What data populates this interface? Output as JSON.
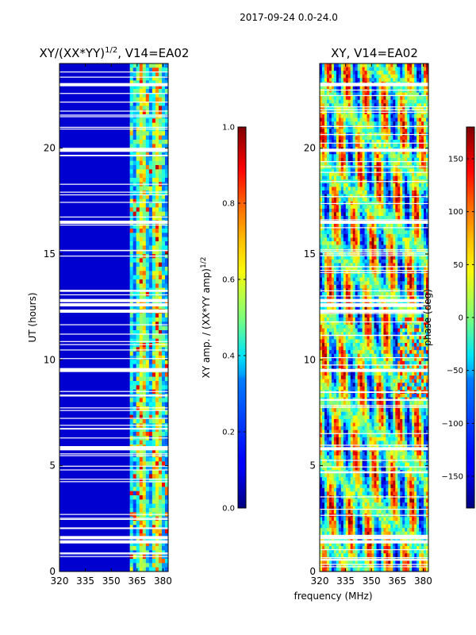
{
  "figure_title": "2017-09-24 0.0-24.0",
  "chart_data": [
    {
      "type": "heatmap",
      "title": "XY/(XX*YY)^1/2, V14=EA02",
      "title_main": "XY/(XX*YY)",
      "title_sup": "1/2",
      "title_tail": ", V14=EA02",
      "xlabel": "",
      "ylabel": "UT (hours)",
      "x_range": [
        320,
        383
      ],
      "y_range": [
        0,
        24
      ],
      "x_ticks": [
        "320",
        "335",
        "350",
        "365",
        "380"
      ],
      "y_ticks": [
        "0",
        "5",
        "10",
        "15",
        "20"
      ],
      "colorbar": {
        "label": "XY amp. / (XX*YY amp)^1/2",
        "label_main": "XY amp. / (XX*YY amp)",
        "label_sup": "1/2",
        "range": [
          0,
          1
        ],
        "ticks": [
          "0.0",
          "0.2",
          "0.4",
          "0.6",
          "0.8",
          "1.0"
        ]
      },
      "active_band_start_mhz": 360,
      "flagged_ut_hours": [
        1.4,
        1.6,
        5.8,
        9.5,
        12.3,
        12.6,
        12.8,
        16.5,
        19.9,
        23.0
      ]
    },
    {
      "type": "heatmap",
      "title": "XY, V14=EA02",
      "xlabel": "frequency (MHz)",
      "ylabel": "",
      "x_range": [
        320,
        383
      ],
      "y_range": [
        0,
        24
      ],
      "x_ticks": [
        "320",
        "335",
        "350",
        "365",
        "380"
      ],
      "y_ticks": [
        "0",
        "5",
        "10",
        "15",
        "20"
      ],
      "colorbar": {
        "label": "phase (deg)",
        "range": [
          -180,
          180
        ],
        "ticks": [
          "-150",
          "-100",
          "-50",
          "0",
          "50",
          "100",
          "150"
        ]
      },
      "flagged_ut_hours": [
        1.4,
        1.6,
        5.8,
        9.5,
        12.3,
        12.6,
        12.8,
        16.5,
        19.9,
        23.0
      ]
    }
  ]
}
